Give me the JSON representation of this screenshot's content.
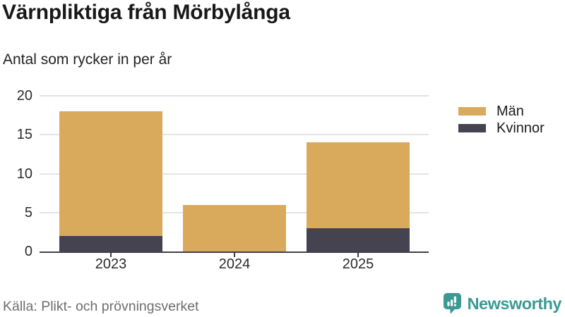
{
  "header": {
    "title": "Värnpliktiga från Mörbylånga",
    "subtitle": "Antal som rycker in per år"
  },
  "footer": {
    "source": "Källa: Plikt- och prövningsverket",
    "brand": "Newsworthy"
  },
  "colors": {
    "men": "#d9aa5c",
    "women": "#454350",
    "gridline": "#e4e4e4",
    "axis": "#413f4a",
    "brand_teal": "#3a9a93",
    "source_text": "#6e6e6e"
  },
  "chart_data": {
    "type": "bar",
    "stacked": true,
    "title": "Värnpliktiga från Mörbylånga",
    "subtitle": "Antal som rycker in per år",
    "categories": [
      "2023",
      "2024",
      "2025"
    ],
    "series": [
      {
        "name": "Män",
        "color": "#d9aa5c",
        "values": [
          16,
          6,
          11
        ]
      },
      {
        "name": "Kvinnor",
        "color": "#454350",
        "values": [
          2,
          0,
          3
        ]
      }
    ],
    "totals": [
      18,
      6,
      14
    ],
    "stack_order_bottom_to_top": [
      "Kvinnor",
      "Män"
    ],
    "xlabel": "",
    "ylabel": "",
    "ylim": [
      0,
      20
    ],
    "yticks": [
      0,
      5,
      10,
      15,
      20
    ],
    "grid": "horizontal",
    "legend_position": "top-right",
    "legend_entries": [
      "Män",
      "Kvinnor"
    ]
  }
}
